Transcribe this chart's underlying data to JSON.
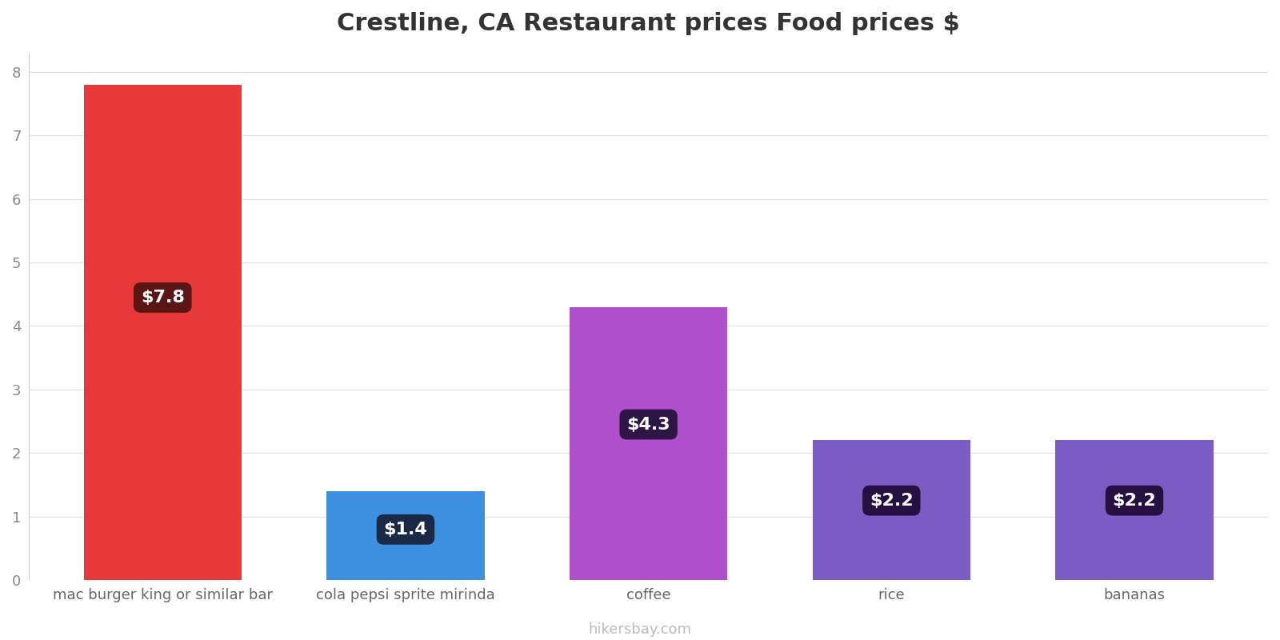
{
  "title": "Crestline, CA Restaurant prices Food prices $",
  "categories": [
    "mac burger king or similar bar",
    "cola pepsi sprite mirinda",
    "coffee",
    "rice",
    "bananas"
  ],
  "values": [
    7.8,
    1.4,
    4.3,
    2.2,
    2.2
  ],
  "bar_colors": [
    "#e8393a",
    "#3d8fe0",
    "#b04fcc",
    "#7b5cc4",
    "#7b5cc4"
  ],
  "label_bg_colors": [
    "#5a1515",
    "#1a2a45",
    "#2d1545",
    "#251040",
    "#251040"
  ],
  "labels": [
    "$7.8",
    "$1.4",
    "$4.3",
    "$2.2",
    "$2.2"
  ],
  "ylim": [
    0,
    8.3
  ],
  "yticks": [
    0,
    1,
    2,
    3,
    4,
    5,
    6,
    7,
    8
  ],
  "footer": "hikersbay.com",
  "title_fontsize": 22,
  "label_fontsize": 16,
  "tick_fontsize": 13,
  "footer_fontsize": 13,
  "background_color": "#ffffff",
  "bar_width": 0.65
}
